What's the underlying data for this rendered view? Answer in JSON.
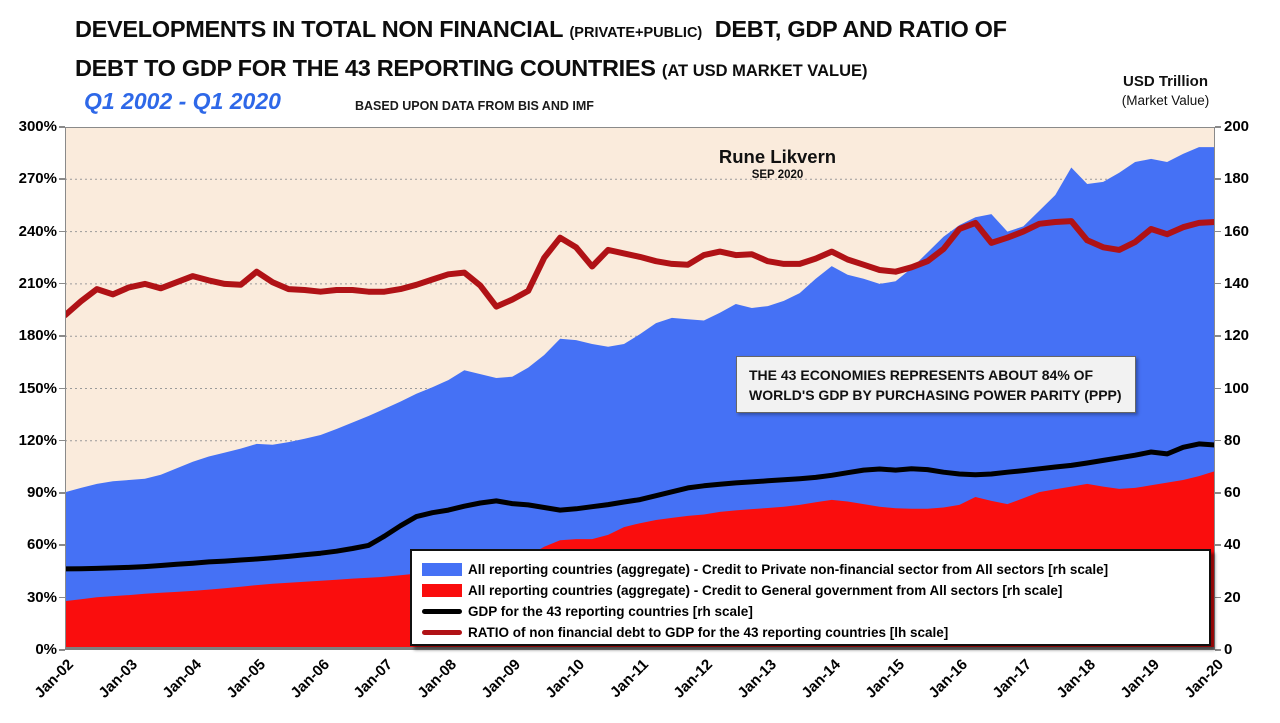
{
  "header": {
    "title_line1_main": "DEVELOPMENTS IN TOTAL NON FINANCIAL",
    "title_line1_small": "(PRIVATE+PUBLIC)",
    "title_line1_rest": "DEBT, GDP AND RATIO OF",
    "title_line2_main": "DEBT TO GDP FOR THE 43 REPORTING COUNTRIES",
    "title_line2_small": "(AT USD MARKET VALUE)",
    "period": "Q1 2002 - Q1 2020",
    "source_note": "BASED UPON DATA FROM BIS AND IMF",
    "right_axis_title": "USD Trillion",
    "right_axis_subtitle": "(Market Value)"
  },
  "annotations": {
    "author": "Rune Likvern",
    "date": "SEP 2020",
    "info_line1": "THE 43 ECONOMIES REPRESENTS ABOUT 84% OF",
    "info_line2": "WORLD'S GDP BY PURCHASING POWER PARITY (PPP)"
  },
  "colors": {
    "plot_bg": "#FAEBDC",
    "gridline": "#9a9a9a",
    "private_blue": "#4571F5",
    "government_red": "#FA0D0D",
    "gdp_black": "#000000",
    "ratio_dark_red": "#B01216",
    "subtitle_blue": "#2E68E8",
    "info_box_bg": "#F2F2F2"
  },
  "legend": {
    "items": [
      {
        "shape": "area",
        "color": "#4571F5",
        "label": "All reporting countries (aggregate) - Credit to Private non-financial sector from All sectors [rh scale]"
      },
      {
        "shape": "area",
        "color": "#FA0D0D",
        "label": "All reporting countries (aggregate) - Credit to General government from All sectors [rh scale]"
      },
      {
        "shape": "line",
        "color": "#000000",
        "label": "GDP for the 43 reporting countries [rh scale]"
      },
      {
        "shape": "line",
        "color": "#B01216",
        "label": "RATIO of non financial debt to GDP for the 43 reporting countries [lh scale]"
      }
    ]
  },
  "chart_data": {
    "type": "area",
    "frequency": "quarterly",
    "x_start": "2002Q1",
    "x_end": "2020Q1",
    "x_labels": [
      "Jan-02",
      "Jan-03",
      "Jan-04",
      "Jan-05",
      "Jan-06",
      "Jan-07",
      "Jan-08",
      "Jan-09",
      "Jan-10",
      "Jan-11",
      "Jan-12",
      "Jan-13",
      "Jan-14",
      "Jan-15",
      "Jan-16",
      "Jan-17",
      "Jan-18",
      "Jan-19",
      "Jan-20"
    ],
    "left_axis": {
      "min": 0,
      "max": 300,
      "step": 30,
      "unit": "%",
      "labels": [
        "300%",
        "270%",
        "240%",
        "210%",
        "180%",
        "150%",
        "120%",
        "90%",
        "60%",
        "30%",
        "0%"
      ]
    },
    "right_axis": {
      "min": 0,
      "max": 200,
      "step": 20,
      "unit": "USD Trillion",
      "labels": [
        "200",
        "180",
        "160",
        "140",
        "120",
        "100",
        "80",
        "60",
        "40",
        "20",
        "0"
      ]
    },
    "grid": "horizontal-dotted",
    "legend_position": "bottom-right-inside",
    "series": [
      {
        "name": "All reporting countries (aggregate) - Credit to Private non-financial sector from All sectors [rh scale]",
        "type": "area-stacked",
        "stack_order": "top",
        "axis": "right",
        "color": "#4571F5",
        "values": [
          41.6,
          42.6,
          43.3,
          43.9,
          44.0,
          44.0,
          45.1,
          47.3,
          49.4,
          50.9,
          51.9,
          52.8,
          54.0,
          53.2,
          53.8,
          54.7,
          55.7,
          57.6,
          59.7,
          61.9,
          64.2,
          66.4,
          68.8,
          70.9,
          73.8,
          78.0,
          75.9,
          73.0,
          71.5,
          72.0,
          73.3,
          77.0,
          76.1,
          74.6,
          72.0,
          70.0,
          72.3,
          75.3,
          76.5,
          75.2,
          74.2,
          76.2,
          78.9,
          76.9,
          77.2,
          78.7,
          81.0,
          85.5,
          89.4,
          86.7,
          86.2,
          85.2,
          86.8,
          92.0,
          98.0,
          103.5,
          107.0,
          107.0,
          109.7,
          104.2,
          104.0,
          107.6,
          112.5,
          122.0,
          114.7,
          116.5,
          120.9,
          124.6,
          124.8,
          122.6,
          124.7,
          125.8,
          123.9
        ]
      },
      {
        "name": "All reporting countries (aggregate) - Credit to General government from All sectors [rh scale]",
        "type": "area-stacked",
        "stack_order": "bottom",
        "axis": "right",
        "color": "#FA0D0D",
        "values": [
          18.7,
          19.4,
          20.2,
          20.6,
          21.0,
          21.5,
          21.9,
          22.2,
          22.6,
          23.1,
          23.6,
          24.2,
          24.8,
          25.3,
          25.7,
          26.1,
          26.5,
          26.9,
          27.3,
          27.6,
          28.0,
          28.6,
          29.2,
          29.6,
          29.4,
          29.0,
          29.6,
          31.0,
          33.0,
          36.0,
          39.5,
          42.0,
          42.4,
          42.4,
          44.0,
          47.0,
          48.5,
          49.7,
          50.5,
          51.3,
          51.8,
          52.8,
          53.4,
          53.9,
          54.3,
          54.8,
          55.5,
          56.5,
          57.4,
          56.8,
          55.8,
          54.8,
          54.2,
          54.0,
          54.0,
          54.5,
          55.5,
          58.5,
          57.0,
          55.8,
          58.0,
          60.4,
          61.5,
          62.5,
          63.5,
          62.5,
          61.6,
          62.0,
          63.0,
          64.0,
          65.0,
          66.5,
          68.4
        ]
      },
      {
        "name": "GDP for the 43 reporting countries [rh scale]",
        "type": "line",
        "axis": "right",
        "color": "#000000",
        "values": [
          31.0,
          31.1,
          31.2,
          31.4,
          31.6,
          31.9,
          32.3,
          32.8,
          33.2,
          33.7,
          34.0,
          34.4,
          34.8,
          35.3,
          35.8,
          36.4,
          37.0,
          37.8,
          38.8,
          40.0,
          43.5,
          47.5,
          51.0,
          52.5,
          53.5,
          55.0,
          56.2,
          57.0,
          56.0,
          55.5,
          54.5,
          53.5,
          54.0,
          54.8,
          55.6,
          56.6,
          57.5,
          59.0,
          60.5,
          62.0,
          62.8,
          63.4,
          63.9,
          64.3,
          64.7,
          65.1,
          65.5,
          66.0,
          66.8,
          67.8,
          68.8,
          69.2,
          68.8,
          69.3,
          69.0,
          68.0,
          67.3,
          67.0,
          67.3,
          68.0,
          68.6,
          69.3,
          70.0,
          70.6,
          71.5,
          72.5,
          73.5,
          74.5,
          75.7,
          75.0,
          77.5,
          78.8,
          78.4
        ]
      },
      {
        "name": "RATIO of non financial debt to GDP for the 43 reporting countries [lh scale]",
        "type": "line",
        "axis": "left",
        "color": "#B01216",
        "values": [
          192,
          200,
          207,
          204,
          208,
          210,
          207.5,
          211,
          214.5,
          212,
          210,
          209.5,
          217,
          211,
          207,
          206.5,
          205.5,
          206.5,
          206.5,
          205.5,
          205.5,
          207,
          209.5,
          212.5,
          215.5,
          216.5,
          209,
          197,
          201,
          206,
          225,
          236.5,
          231,
          220,
          229.5,
          227.5,
          225.5,
          223,
          221.5,
          221,
          226.5,
          228.5,
          226.5,
          227,
          223,
          221.5,
          221.5,
          224.5,
          228.5,
          224,
          221,
          218,
          217,
          219.5,
          223,
          230,
          241.5,
          245,
          233.5,
          236.5,
          240,
          244.5,
          245.5,
          246,
          235,
          231,
          229.5,
          234,
          241.5,
          238.5,
          242.5,
          245,
          245.5
        ]
      }
    ]
  }
}
